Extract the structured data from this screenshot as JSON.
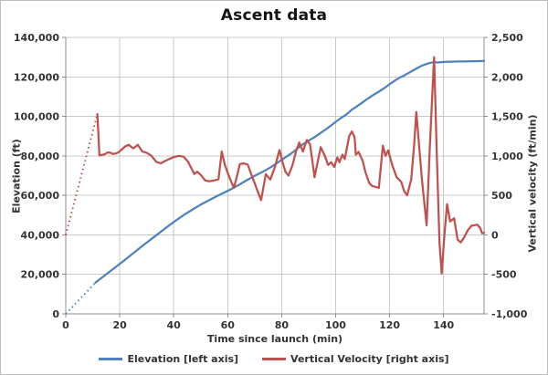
{
  "chart_data": {
    "type": "line",
    "title": "Ascent data",
    "xlabel": "Time since launch (min)",
    "ylabel_left": "Elevation (ft)",
    "ylabel_right": "Vertical velocity (ft/min)",
    "grid": true,
    "legend_position": "bottom",
    "xlim": [
      0,
      155
    ],
    "x_ticks": [
      0,
      20,
      40,
      60,
      80,
      100,
      120,
      140
    ],
    "ylim_left": [
      0,
      140000
    ],
    "y_ticks_left": [
      0,
      20000,
      40000,
      60000,
      80000,
      100000,
      120000,
      140000
    ],
    "ylim_right": [
      -1000,
      2500
    ],
    "y_ticks_right": [
      -1000,
      -500,
      0,
      500,
      1000,
      1500,
      2000,
      2500
    ],
    "colors": {
      "elevation": "#4F81BD",
      "velocity": "#C0504D",
      "gridline": "#C9C9C9",
      "axis_line": "#8C8C8C",
      "text": "#333333"
    },
    "series": [
      {
        "name": "Elevation [left axis]",
        "axis": "left",
        "color": "#4F81BD",
        "dotted_points": [
          [
            0,
            0
          ],
          [
            11,
            15800
          ]
        ],
        "points": [
          [
            11,
            15800
          ],
          [
            12,
            16900
          ],
          [
            14,
            19000
          ],
          [
            16,
            21100
          ],
          [
            18,
            23200
          ],
          [
            20,
            25300
          ],
          [
            22,
            27400
          ],
          [
            24,
            29600
          ],
          [
            26,
            31800
          ],
          [
            28,
            34000
          ],
          [
            30,
            36100
          ],
          [
            32,
            38200
          ],
          [
            34,
            40300
          ],
          [
            36,
            42400
          ],
          [
            38,
            44500
          ],
          [
            40,
            46500
          ],
          [
            42,
            48400
          ],
          [
            44,
            50300
          ],
          [
            46,
            52000
          ],
          [
            48,
            53700
          ],
          [
            50,
            55300
          ],
          [
            52,
            56800
          ],
          [
            54,
            58200
          ],
          [
            56,
            59600
          ],
          [
            58,
            61000
          ],
          [
            60,
            62300
          ],
          [
            62,
            63700
          ],
          [
            64,
            65200
          ],
          [
            66,
            66800
          ],
          [
            68,
            68400
          ],
          [
            70,
            69900
          ],
          [
            72,
            71300
          ],
          [
            74,
            72700
          ],
          [
            76,
            74300
          ],
          [
            78,
            76100
          ],
          [
            80,
            78000
          ],
          [
            82,
            79800
          ],
          [
            84,
            81700
          ],
          [
            86,
            83900
          ],
          [
            88,
            86000
          ],
          [
            90,
            87700
          ],
          [
            92,
            89300
          ],
          [
            94,
            91200
          ],
          [
            96,
            93100
          ],
          [
            98,
            95100
          ],
          [
            100,
            97200
          ],
          [
            102,
            99200
          ],
          [
            104,
            101000
          ],
          [
            105,
            102200
          ],
          [
            106,
            103400
          ],
          [
            107,
            104300
          ],
          [
            108,
            105200
          ],
          [
            110,
            107100
          ],
          [
            112,
            109100
          ],
          [
            114,
            110900
          ],
          [
            116,
            112500
          ],
          [
            118,
            114300
          ],
          [
            120,
            116300
          ],
          [
            122,
            118200
          ],
          [
            124,
            119800
          ],
          [
            126,
            121200
          ],
          [
            128,
            122700
          ],
          [
            130,
            124300
          ],
          [
            132,
            125700
          ],
          [
            134,
            126700
          ],
          [
            135,
            127100
          ],
          [
            136,
            127400
          ],
          [
            137,
            127400
          ],
          [
            138,
            127300
          ],
          [
            139,
            127500
          ],
          [
            141,
            127600
          ],
          [
            143,
            127700
          ],
          [
            145,
            127800
          ],
          [
            147,
            127800
          ],
          [
            149,
            127900
          ],
          [
            151,
            127950
          ],
          [
            153,
            128000
          ],
          [
            155,
            128100
          ]
        ]
      },
      {
        "name": "Vertical Velocity [right axis]",
        "axis": "right",
        "color": "#C0504D",
        "dotted_points": [
          [
            0,
            0
          ],
          [
            11.7,
            1530
          ]
        ],
        "points": [
          [
            11.7,
            1530
          ],
          [
            12.5,
            1005
          ],
          [
            13.5,
            1015
          ],
          [
            14.5,
            1020
          ],
          [
            15.5,
            1045
          ],
          [
            16.5,
            1040
          ],
          [
            17.5,
            1025
          ],
          [
            18.5,
            1030
          ],
          [
            19.5,
            1045
          ],
          [
            21,
            1090
          ],
          [
            22,
            1120
          ],
          [
            23.3,
            1140
          ],
          [
            25,
            1095
          ],
          [
            26.7,
            1140
          ],
          [
            28.4,
            1055
          ],
          [
            30,
            1040
          ],
          [
            31.8,
            1000
          ],
          [
            33.5,
            925
          ],
          [
            35.2,
            905
          ],
          [
            36.5,
            930
          ],
          [
            38.6,
            965
          ],
          [
            40,
            985
          ],
          [
            41.9,
            1000
          ],
          [
            43.7,
            990
          ],
          [
            45.3,
            925
          ],
          [
            47.6,
            770
          ],
          [
            48.7,
            800
          ],
          [
            50.3,
            750
          ],
          [
            51.6,
            690
          ],
          [
            53,
            680
          ],
          [
            54.5,
            685
          ],
          [
            56.6,
            705
          ],
          [
            57.8,
            1055
          ],
          [
            59,
            880
          ],
          [
            60.6,
            730
          ],
          [
            62.3,
            595
          ],
          [
            63.5,
            750
          ],
          [
            64.5,
            895
          ],
          [
            66,
            905
          ],
          [
            67.4,
            890
          ],
          [
            68.5,
            790
          ],
          [
            69.6,
            690
          ],
          [
            71,
            560
          ],
          [
            72.4,
            440
          ],
          [
            74.1,
            770
          ],
          [
            75.8,
            700
          ],
          [
            77.5,
            860
          ],
          [
            79.2,
            1075
          ],
          [
            80.5,
            900
          ],
          [
            81.4,
            800
          ],
          [
            82.5,
            750
          ],
          [
            84,
            880
          ],
          [
            85.3,
            1050
          ],
          [
            86.5,
            1170
          ],
          [
            87.9,
            1055
          ],
          [
            89.3,
            1200
          ],
          [
            90.5,
            1150
          ],
          [
            92.2,
            730
          ],
          [
            93.5,
            950
          ],
          [
            94.5,
            1110
          ],
          [
            96,
            1000
          ],
          [
            97.2,
            885
          ],
          [
            98.3,
            920
          ],
          [
            99.5,
            860
          ],
          [
            100.6,
            980
          ],
          [
            101.4,
            920
          ],
          [
            102.5,
            1015
          ],
          [
            103.4,
            960
          ],
          [
            105,
            1250
          ],
          [
            106,
            1310
          ],
          [
            107,
            1240
          ],
          [
            107.5,
            1015
          ],
          [
            108.5,
            1050
          ],
          [
            110,
            940
          ],
          [
            111,
            800
          ],
          [
            112.4,
            660
          ],
          [
            113.5,
            620
          ],
          [
            114.5,
            610
          ],
          [
            116,
            595
          ],
          [
            117.5,
            1130
          ],
          [
            118.5,
            1000
          ],
          [
            119.5,
            1070
          ],
          [
            121,
            880
          ],
          [
            122.6,
            730
          ],
          [
            124.3,
            670
          ],
          [
            125.4,
            555
          ],
          [
            126.5,
            500
          ],
          [
            128,
            700
          ],
          [
            129,
            1100
          ],
          [
            129.9,
            1555
          ],
          [
            131,
            1100
          ],
          [
            132,
            700
          ],
          [
            133.7,
            120
          ],
          [
            134.9,
            1110
          ],
          [
            135.7,
            1700
          ],
          [
            136.5,
            2250
          ],
          [
            137.5,
            1000
          ],
          [
            138.5,
            -100
          ],
          [
            139.3,
            -490
          ],
          [
            140.3,
            0
          ],
          [
            141.3,
            390
          ],
          [
            142.4,
            170
          ],
          [
            143.9,
            210
          ],
          [
            145.2,
            -60
          ],
          [
            146.3,
            -95
          ],
          [
            147.5,
            -40
          ],
          [
            149,
            60
          ],
          [
            150.3,
            115
          ],
          [
            152.5,
            130
          ],
          [
            153.5,
            90
          ],
          [
            154.3,
            20
          ],
          [
            155,
            25
          ]
        ]
      }
    ]
  },
  "legend": {
    "elevation_label": "Elevation [left axis]",
    "velocity_label": "Vertical Velocity [right axis]"
  }
}
